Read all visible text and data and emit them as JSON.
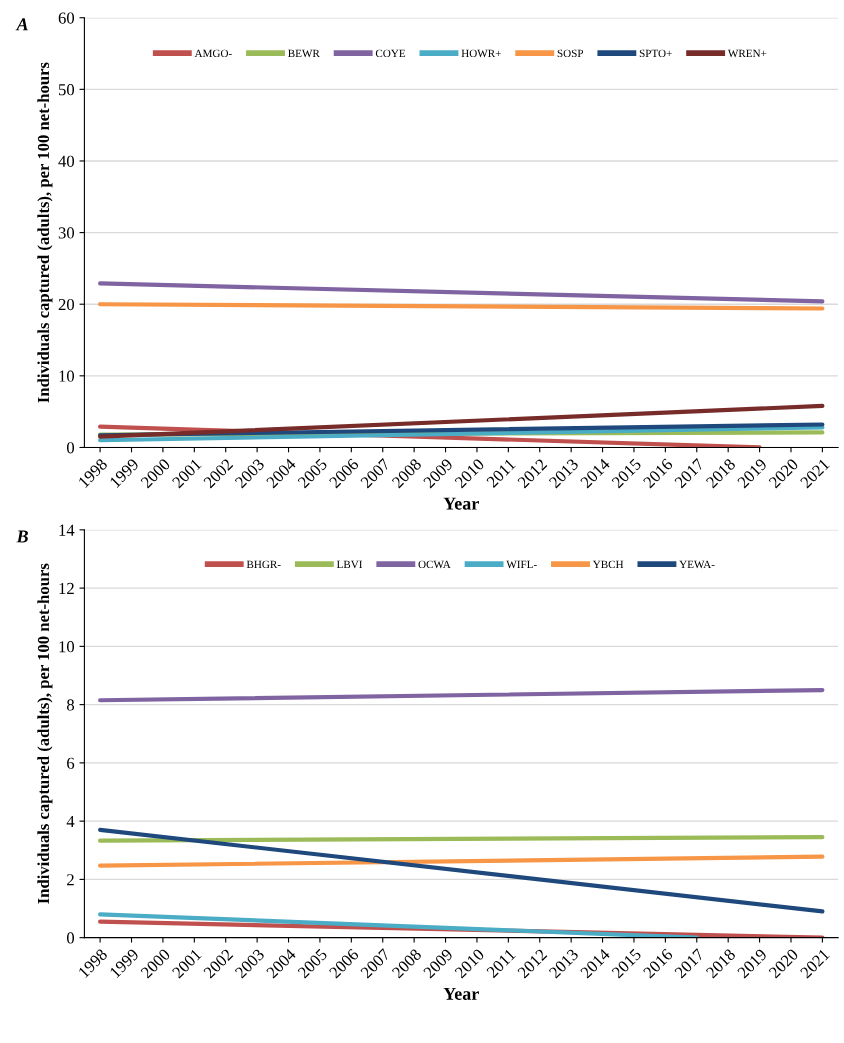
{
  "chart_data": [
    {
      "type": "line",
      "annotations": [
        "A"
      ],
      "xlabel": "Year",
      "ylabel": "Individuals captured (adults), per 100 net-hours",
      "categories": [
        "1998",
        "1999",
        "2000",
        "2001",
        "2002",
        "2003",
        "2004",
        "2005",
        "2006",
        "2007",
        "2008",
        "2009",
        "2010",
        "2011",
        "2012",
        "2013",
        "2014",
        "2015",
        "2016",
        "2017",
        "2018",
        "2019",
        "2020",
        "2021"
      ],
      "ylim": [
        0,
        60
      ],
      "yticks": [
        0,
        10,
        20,
        30,
        40,
        50,
        60
      ],
      "grid": "y",
      "legend": "top",
      "marker": "none",
      "line_style": "solid",
      "series": [
        {
          "name": "AMGO-",
          "color": "#c0504d",
          "values": [
            2.9,
            null,
            null,
            null,
            null,
            null,
            null,
            null,
            null,
            null,
            null,
            null,
            null,
            null,
            null,
            null,
            null,
            null,
            null,
            null,
            null,
            0,
            null,
            null
          ]
        },
        {
          "name": "BEWR",
          "color": "#9bbb59",
          "values": [
            1.8,
            null,
            null,
            null,
            null,
            null,
            null,
            null,
            null,
            null,
            null,
            null,
            null,
            null,
            null,
            null,
            null,
            null,
            null,
            null,
            null,
            null,
            null,
            2.1
          ]
        },
        {
          "name": "COYE",
          "color": "#8064a2",
          "values": [
            22.9,
            null,
            null,
            null,
            null,
            null,
            null,
            null,
            null,
            null,
            null,
            null,
            null,
            null,
            null,
            null,
            null,
            null,
            null,
            null,
            null,
            null,
            null,
            20.4
          ]
        },
        {
          "name": "HOWR+",
          "color": "#4bacc6",
          "values": [
            1.0,
            null,
            null,
            null,
            null,
            null,
            null,
            null,
            null,
            null,
            null,
            null,
            null,
            null,
            null,
            null,
            null,
            null,
            null,
            null,
            null,
            null,
            null,
            2.8
          ]
        },
        {
          "name": "SOSP",
          "color": "#f79646",
          "values": [
            20.0,
            null,
            null,
            null,
            null,
            null,
            null,
            null,
            null,
            null,
            null,
            null,
            null,
            null,
            null,
            null,
            null,
            null,
            null,
            null,
            null,
            null,
            null,
            19.4
          ]
        },
        {
          "name": "SPTO+",
          "color": "#1f497d",
          "values": [
            1.7,
            null,
            null,
            null,
            null,
            null,
            null,
            null,
            null,
            null,
            null,
            null,
            null,
            null,
            null,
            null,
            null,
            null,
            null,
            null,
            null,
            null,
            null,
            3.2
          ]
        },
        {
          "name": "WREN+",
          "color": "#772c2a",
          "values": [
            1.5,
            null,
            null,
            null,
            null,
            null,
            null,
            null,
            null,
            null,
            null,
            null,
            null,
            null,
            null,
            null,
            null,
            null,
            null,
            null,
            null,
            null,
            null,
            5.8
          ]
        }
      ]
    },
    {
      "type": "line",
      "annotations": [
        "B"
      ],
      "xlabel": "Year",
      "ylabel": "Individuals captured (adults), per 100 net-hours",
      "categories": [
        "1998",
        "1999",
        "2000",
        "2001",
        "2002",
        "2003",
        "2004",
        "2005",
        "2006",
        "2007",
        "2008",
        "2009",
        "2010",
        "2011",
        "2012",
        "2013",
        "2014",
        "2015",
        "2016",
        "2017",
        "2018",
        "2019",
        "2020",
        "2021"
      ],
      "ylim": [
        0,
        14
      ],
      "yticks": [
        0,
        2,
        4,
        6,
        8,
        10,
        12,
        14
      ],
      "grid": "y",
      "legend": "top",
      "marker": "none",
      "line_style": "solid",
      "series": [
        {
          "name": "BHGR-",
          "color": "#c0504d",
          "values": [
            0.55,
            null,
            null,
            null,
            null,
            null,
            null,
            null,
            null,
            null,
            null,
            null,
            null,
            null,
            null,
            null,
            null,
            null,
            null,
            null,
            null,
            null,
            null,
            0.0
          ]
        },
        {
          "name": "LBVI",
          "color": "#9bbb59",
          "values": [
            3.33,
            null,
            null,
            null,
            null,
            null,
            null,
            null,
            null,
            null,
            null,
            null,
            null,
            null,
            null,
            null,
            null,
            null,
            null,
            null,
            null,
            null,
            null,
            3.45
          ]
        },
        {
          "name": "OCWA",
          "color": "#8064a2",
          "values": [
            8.15,
            null,
            null,
            null,
            null,
            null,
            null,
            null,
            null,
            null,
            null,
            null,
            null,
            null,
            null,
            null,
            null,
            null,
            null,
            null,
            null,
            null,
            null,
            8.5
          ]
        },
        {
          "name": "WIFL-",
          "color": "#4bacc6",
          "values": [
            0.8,
            null,
            null,
            null,
            null,
            null,
            null,
            null,
            null,
            null,
            null,
            null,
            null,
            null,
            null,
            null,
            null,
            null,
            null,
            0.0,
            null,
            null,
            null,
            null
          ]
        },
        {
          "name": "YBCH",
          "color": "#f79646",
          "values": [
            2.47,
            null,
            null,
            null,
            null,
            null,
            null,
            null,
            null,
            null,
            null,
            null,
            null,
            null,
            null,
            null,
            null,
            null,
            null,
            null,
            null,
            null,
            null,
            2.78
          ]
        },
        {
          "name": "YEWA-",
          "color": "#1f497d",
          "values": [
            3.7,
            null,
            null,
            null,
            null,
            null,
            null,
            null,
            null,
            null,
            null,
            null,
            null,
            null,
            null,
            null,
            null,
            null,
            null,
            null,
            null,
            null,
            null,
            0.9
          ]
        }
      ]
    }
  ]
}
